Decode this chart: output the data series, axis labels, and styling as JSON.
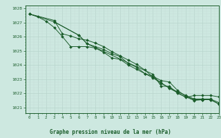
{
  "title": "Graphe pression niveau de la mer (hPa)",
  "background_color": "#cde8e0",
  "line_color": "#1a5c2a",
  "xlim": [
    -0.5,
    23
  ],
  "ylim": [
    1020.6,
    1028.2
  ],
  "yticks": [
    1021,
    1022,
    1023,
    1024,
    1025,
    1026,
    1027,
    1028
  ],
  "xticks": [
    0,
    1,
    2,
    3,
    4,
    5,
    6,
    7,
    8,
    9,
    10,
    11,
    12,
    13,
    14,
    15,
    16,
    17,
    18,
    19,
    20,
    21,
    22,
    23
  ],
  "series": [
    {
      "x": [
        0,
        1,
        2,
        3,
        4,
        5,
        6,
        7,
        8,
        9,
        10,
        11,
        12,
        13,
        14,
        15,
        16,
        17,
        18,
        19,
        20,
        21,
        22,
        23
      ],
      "y": [
        1027.6,
        1027.4,
        1027.1,
        1026.65,
        1026.0,
        1025.3,
        1025.3,
        1025.3,
        1025.2,
        1024.9,
        1024.5,
        1024.4,
        1024.0,
        1023.7,
        1023.4,
        1023.2,
        1022.9,
        1022.8,
        1022.2,
        1021.8,
        1021.55,
        1021.55,
        1021.55,
        1021.25
      ]
    },
    {
      "x": [
        0,
        3,
        6,
        7,
        8,
        9,
        10,
        11,
        12,
        13,
        14,
        15,
        16,
        17,
        18,
        19,
        20,
        21,
        22,
        23
      ],
      "y": [
        1027.6,
        1027.05,
        1026.1,
        1025.5,
        1025.3,
        1025.1,
        1024.8,
        1024.6,
        1024.1,
        1023.85,
        1023.4,
        1023.1,
        1022.7,
        1022.4,
        1022.1,
        1021.85,
        1021.6,
        1021.6,
        1021.6,
        1021.35
      ]
    },
    {
      "x": [
        0,
        3,
        4,
        5,
        6,
        7,
        8,
        9,
        10,
        11,
        12,
        13,
        14,
        15,
        16,
        17,
        18,
        19,
        20,
        21,
        22,
        23
      ],
      "y": [
        1027.6,
        1027.15,
        1026.2,
        1026.05,
        1025.85,
        1025.75,
        1025.55,
        1025.3,
        1024.95,
        1024.65,
        1024.35,
        1024.05,
        1023.65,
        1023.15,
        1022.75,
        1022.35,
        1022.05,
        1021.7,
        1021.85,
        1021.85,
        1021.85,
        1021.75
      ]
    },
    {
      "x": [
        3,
        6,
        7,
        15,
        16,
        17,
        18,
        19,
        20,
        21,
        22,
        23
      ],
      "y": [
        1027.05,
        1026.1,
        1025.5,
        1023.35,
        1022.5,
        1022.5,
        1022.0,
        1021.75,
        1021.5,
        1021.55,
        1021.55,
        1021.25
      ]
    }
  ]
}
